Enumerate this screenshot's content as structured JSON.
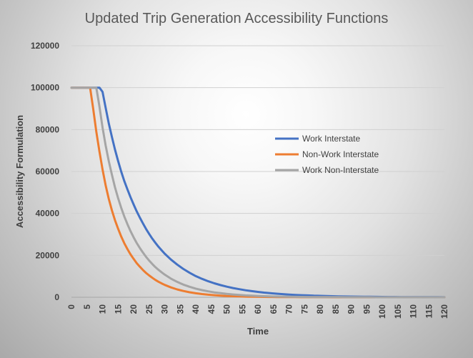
{
  "chart_data": {
    "type": "line",
    "title": "Updated Trip Generation Accessibility Functions",
    "xlabel": "Time",
    "ylabel": "Accessibility Formulation",
    "xlim": [
      0,
      120
    ],
    "ylim": [
      0,
      120000
    ],
    "xticks": [
      "0",
      "5",
      "10",
      "15",
      "20",
      "25",
      "30",
      "35",
      "40",
      "45",
      "50",
      "55",
      "60",
      "65",
      "70",
      "75",
      "80",
      "85",
      "90",
      "95",
      "100",
      "105",
      "110",
      "115",
      "120"
    ],
    "yticks": [
      "0",
      "20000",
      "40000",
      "60000",
      "80000",
      "100000",
      "120000"
    ],
    "grid": "horizontal",
    "legend_position": "right",
    "x": [
      0,
      5,
      6,
      7,
      8,
      9,
      10,
      11,
      12,
      13,
      14,
      15,
      16,
      17,
      18,
      19,
      20,
      21,
      22,
      23,
      24,
      25,
      26,
      27,
      28,
      29,
      30,
      32,
      34,
      36,
      38,
      40,
      42,
      44,
      46,
      48,
      50,
      52,
      54,
      56,
      58,
      60,
      62,
      64,
      66,
      68,
      70,
      72,
      74,
      76,
      78,
      80,
      82,
      84,
      86,
      88,
      90,
      92,
      94,
      96,
      98,
      100,
      102,
      104,
      106,
      108,
      110,
      112,
      114,
      116,
      118,
      120
    ],
    "series": [
      {
        "name": "Work Interstate",
        "color": "#4472c4",
        "values": [
          100000,
          100000,
          100000,
          100000,
          100000,
          100000,
          98000,
          90500,
          83000,
          76500,
          70500,
          65000,
          60000,
          55500,
          51500,
          47800,
          44300,
          41000,
          38000,
          35200,
          32600,
          30200,
          28000,
          26000,
          24100,
          22400,
          20800,
          18000,
          15600,
          13500,
          11700,
          10100,
          8800,
          7650,
          6650,
          5800,
          5050,
          4400,
          3850,
          3350,
          2920,
          2550,
          2230,
          1950,
          1700,
          1490,
          1300,
          1140,
          1000,
          870,
          760,
          670,
          580,
          510,
          450,
          390,
          340,
          300,
          260,
          230,
          200,
          175,
          150,
          130,
          115,
          100,
          88,
          77,
          67,
          59,
          52,
          45
        ]
      },
      {
        "name": "Non-Work Interstate",
        "color": "#ed7d31",
        "values": [
          100000,
          100000,
          100000,
          90000,
          79000,
          69500,
          61000,
          53500,
          47000,
          41500,
          36800,
          32700,
          29000,
          25800,
          23000,
          20500,
          18300,
          16300,
          14600,
          13000,
          11600,
          10400,
          9300,
          8300,
          7400,
          6600,
          5900,
          4700,
          3750,
          3000,
          2400,
          1920,
          1530,
          1220,
          980,
          780,
          620,
          500,
          400,
          320,
          260,
          210,
          170,
          135,
          110,
          90,
          72,
          58,
          47,
          38,
          30,
          24,
          20,
          16,
          13,
          10,
          8,
          7,
          5,
          4,
          3,
          3,
          2,
          2,
          1,
          1,
          1,
          1,
          1,
          0,
          0,
          0
        ]
      },
      {
        "name": "Work Non-Interstate",
        "color": "#a5a5a5",
        "values": [
          100000,
          100000,
          100000,
          100000,
          100000,
          91000,
          81000,
          72500,
          65000,
          58500,
          52500,
          47300,
          42700,
          38600,
          34900,
          31600,
          28600,
          25900,
          23500,
          21300,
          19300,
          17500,
          15900,
          14400,
          13100,
          11900,
          10800,
          8900,
          7350,
          6050,
          5000,
          4130,
          3410,
          2820,
          2330,
          1930,
          1600,
          1320,
          1090,
          900,
          750,
          620,
          510,
          420,
          350,
          290,
          240,
          200,
          165,
          136,
          112,
          93,
          77,
          64,
          53,
          44,
          36,
          30,
          25,
          21,
          17,
          14,
          12,
          10,
          8,
          7,
          6,
          5,
          4,
          3,
          3,
          2
        ]
      }
    ]
  }
}
